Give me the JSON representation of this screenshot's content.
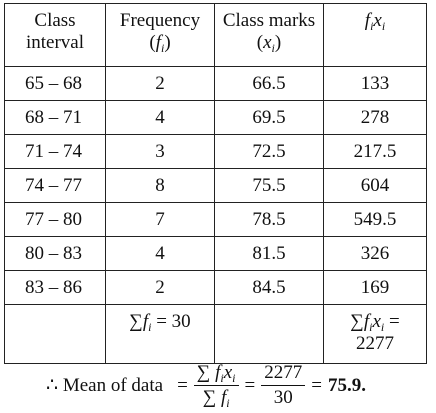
{
  "table": {
    "header": [
      {
        "line1": "Class",
        "line2": "interval"
      },
      {
        "line1": "Frequency",
        "parts": [
          "(",
          "f",
          "i",
          ")"
        ]
      },
      {
        "line1": "Class marks",
        "parts": [
          "(",
          "x",
          "i",
          ")"
        ]
      },
      {
        "parts": [
          "f",
          "i",
          "x",
          "i"
        ]
      }
    ],
    "rows": [
      [
        "65 – 68",
        2,
        66.5,
        133
      ],
      [
        "68 – 71",
        4,
        69.5,
        278
      ],
      [
        "71 – 74",
        3,
        72.5,
        217.5
      ],
      [
        "74 – 77",
        8,
        75.5,
        604
      ],
      [
        "77 – 80",
        7,
        78.5,
        549.5
      ],
      [
        "80 – 83",
        4,
        81.5,
        326
      ],
      [
        "83 – 86",
        2,
        84.5,
        169
      ]
    ],
    "totals": {
      "frequency": [
        "∑",
        "f",
        "i",
        "= 30"
      ],
      "fx": [
        "∑",
        "f",
        "i",
        "x",
        "i",
        "=",
        "2277"
      ]
    }
  },
  "mean": {
    "label": "∴ Mean of data",
    "eq": "=",
    "num": [
      "∑",
      "f",
      "i",
      "x",
      "i"
    ],
    "den": [
      "∑",
      "f",
      "i"
    ],
    "num2": "2277",
    "den2": "30",
    "result": "75.9."
  }
}
